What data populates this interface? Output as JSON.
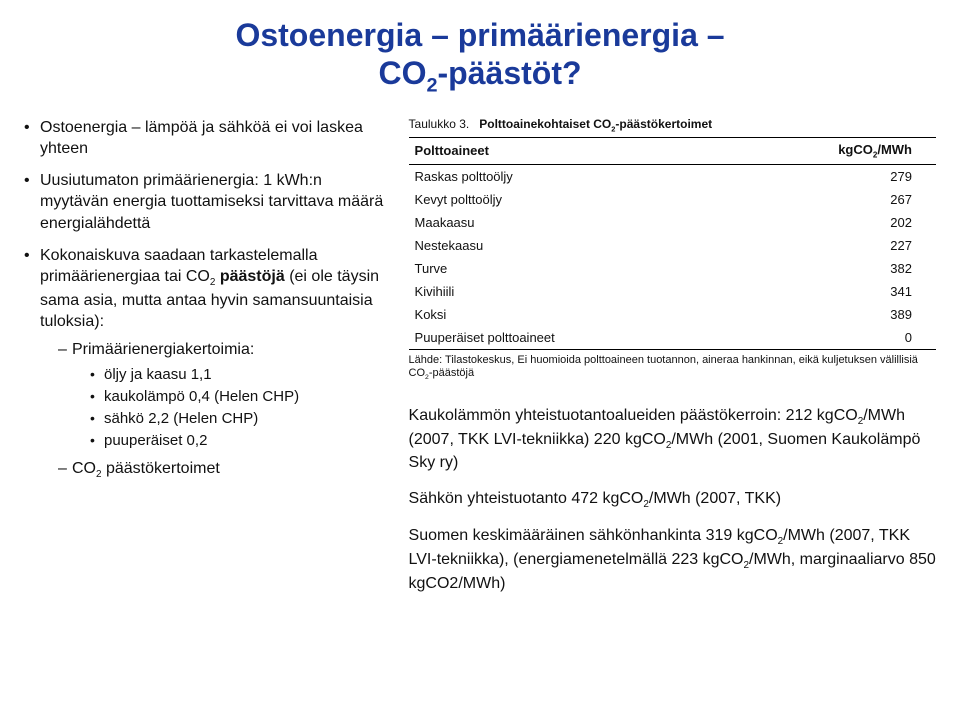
{
  "title_line1": "Ostoenergia – primäärienergia –",
  "title_line2_pre": "CO",
  "title_line2_sub": "2",
  "title_line2_post": "-päästöt?",
  "left": {
    "b1": "Ostoenergia – lämpöä ja sähköä ei voi laskea yhteen",
    "b2_pre": "Uusiutumaton primäärienergia: 1 kWh:n myytävän energia tuottamiseksi tarvittava määrä energialähdettä",
    "b3_pre": "Kokonaiskuva saadaan tarkastelemalla primäärienergiaa tai CO",
    "b3_sub": "2",
    "b3_mid": " ",
    "b3_bold": "päästöjä",
    "b3_post": " (ei ole täysin sama asia, mutta antaa hyvin samansuuntaisia tuloksia):",
    "d1": "Primäärienergiakertoimia:",
    "dot1": "öljy ja kaasu 1,1",
    "dot2": "kaukolämpö 0,4 (Helen CHP)",
    "dot3": "sähkö 2,2 (Helen CHP)",
    "dot4": "puuperäiset 0,2",
    "d2_pre": "CO",
    "d2_sub": "2",
    "d2_post": " päästökertoimet"
  },
  "table": {
    "caption_pre": "Taulukko 3.",
    "caption_bold_pre": "Polttoainekohtaiset CO",
    "caption_bold_sub": "2",
    "caption_bold_post": "-päästökertoimet",
    "col1": "Polttoaineet",
    "col2_pre": "kgCO",
    "col2_sub": "2",
    "col2_post": "/MWh",
    "rows": [
      {
        "name": "Raskas polttoöljy",
        "val": "279"
      },
      {
        "name": "Kevyt polttoöljy",
        "val": "267"
      },
      {
        "name": "Maakaasu",
        "val": "202"
      },
      {
        "name": "Nestekaasu",
        "val": "227"
      },
      {
        "name": "Turve",
        "val": "382"
      },
      {
        "name": "Kivihiili",
        "val": "341"
      },
      {
        "name": "Koksi",
        "val": "389"
      },
      {
        "name": "Puuperäiset polttoaineet",
        "val": "0"
      }
    ],
    "footnote_pre": "Lähde: Tilastokeskus, Ei huomioida polttoaineen tuotannon, aineraa hankinnan, eikä kuljetuksen välillisiä CO",
    "footnote_sub": "2",
    "footnote_post": "-päästöjä"
  },
  "right": {
    "p1_pre": "Kaukolämmön yhteistuotantoalueiden päästökerroin: 212 kgCO",
    "p1_sub1": "2",
    "p1_mid": "/MWh (2007, TKK LVI-tekniikka) 220 kgCO",
    "p1_sub2": "2",
    "p1_post": "/MWh (2001, Suomen Kaukolämpö Sky ry)",
    "p2_pre": "Sähkön yhteistuotanto 472 kgCO",
    "p2_sub": "2",
    "p2_post": "/MWh (2007, TKK)",
    "p3_pre": "Suomen keskimääräinen sähkönhankinta 319 kgCO",
    "p3_sub1": "2",
    "p3_mid": "/MWh (2007, TKK LVI-tekniikka), (energiamenetelmällä 223 kgCO",
    "p3_sub2": "2",
    "p3_post": "/MWh, marginaaliarvo 850 kgCO2/MWh)"
  }
}
